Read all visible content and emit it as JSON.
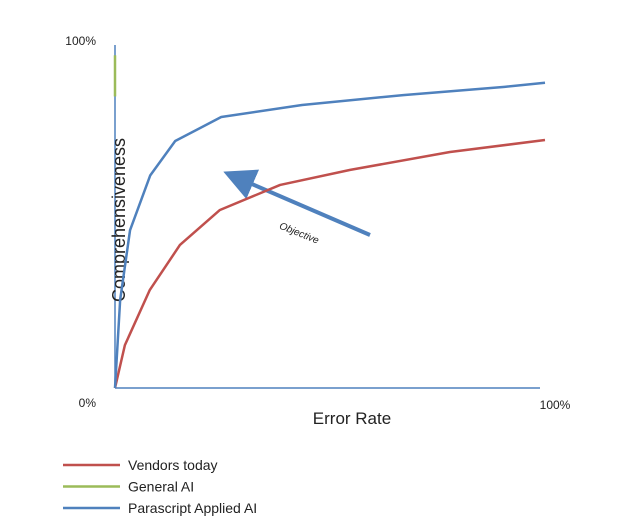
{
  "chart_data": {
    "type": "line",
    "x_label": "Error Rate",
    "y_label": "Comprehensiveness",
    "xlim": [
      0,
      100
    ],
    "ylim": [
      0,
      100
    ],
    "xticks": [
      {
        "value": 100,
        "label": "100%"
      }
    ],
    "yticks": [
      {
        "value": 0,
        "label": "0%"
      },
      {
        "value": 100,
        "label": "100%"
      }
    ],
    "annotation": "Objective",
    "series": [
      {
        "name": "Vendors today",
        "color": "#c0504d",
        "x": [
          0,
          2.3,
          8.1,
          15.1,
          24.4,
          38.4,
          54.7,
          77.9,
          100
        ],
        "values": [
          0,
          12.5,
          28.6,
          41.7,
          51.9,
          59.2,
          63.6,
          68.8,
          72.3
        ]
      },
      {
        "name": "General AI",
        "color": "#9bbb59",
        "x": [
          0,
          0
        ],
        "values": [
          85,
          97
        ]
      },
      {
        "name": "Parascript Applied AI",
        "color": "#4f81bd",
        "x": [
          0,
          1.2,
          3.5,
          8.2,
          14,
          24.7,
          43.5,
          67,
          90.6,
          100
        ],
        "values": [
          0,
          25.7,
          46,
          62,
          72,
          79,
          82.5,
          85.4,
          87.8,
          89
        ]
      }
    ]
  }
}
